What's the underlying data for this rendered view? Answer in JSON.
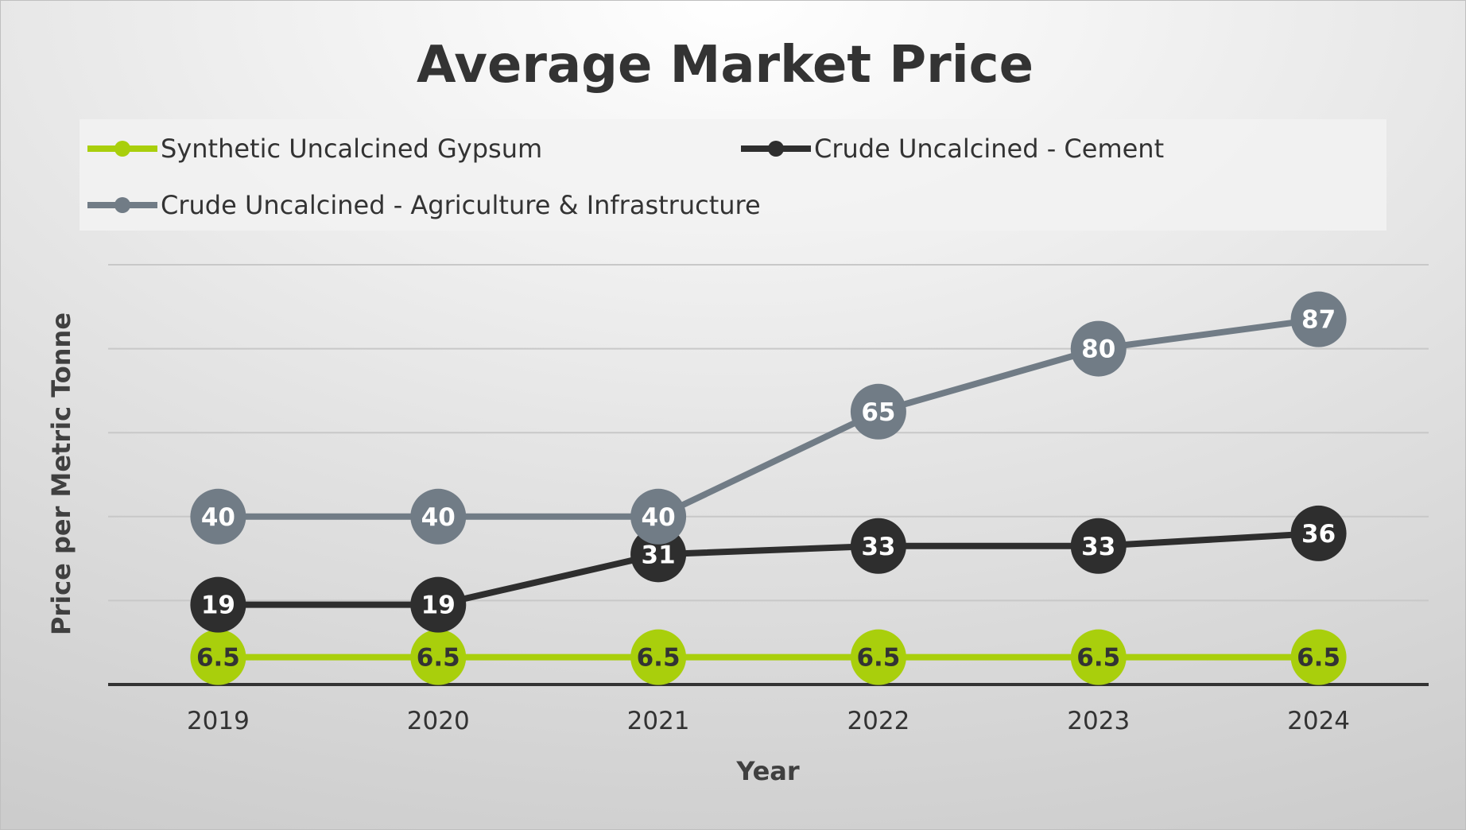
{
  "chart_data": {
    "type": "line",
    "title": "Average Market Price",
    "xlabel": "Year",
    "ylabel": "Price per Metric Tonne",
    "categories": [
      "2019",
      "2020",
      "2021",
      "2022",
      "2023",
      "2024"
    ],
    "ylim": [
      0,
      100
    ],
    "grid": true,
    "legend_position": "top",
    "data_labels": true,
    "series": [
      {
        "name": "Synthetic Uncalcined Gypsum",
        "values": [
          6.5,
          6.5,
          6.5,
          6.5,
          6.5,
          6.5
        ],
        "labels": [
          "6.5",
          "6.5",
          "6.5",
          "6.5",
          "6.5",
          "6.5"
        ],
        "color": "#a9cf0c",
        "label_color": "#333333"
      },
      {
        "name": "Crude Uncalcined - Cement",
        "values": [
          19,
          19,
          31,
          33,
          33,
          36
        ],
        "labels": [
          "19",
          "19",
          "31",
          "33",
          "33",
          "36"
        ],
        "color": "#2e2e2e",
        "label_color": "#ffffff"
      },
      {
        "name": "Crude Uncalcined - Agriculture & Infrastructure",
        "values": [
          40,
          40,
          40,
          65,
          80,
          87
        ],
        "labels": [
          "40",
          "40",
          "40",
          "65",
          "80",
          "87"
        ],
        "color": "#717c86",
        "label_color": "#ffffff"
      }
    ]
  }
}
